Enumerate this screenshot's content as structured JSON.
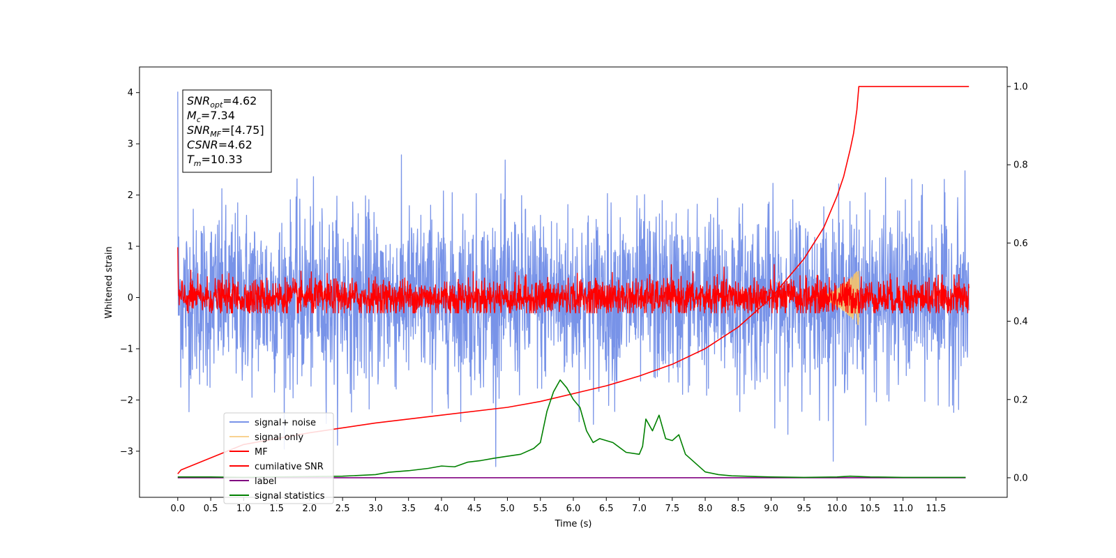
{
  "chart_data": {
    "type": "line",
    "title": "",
    "xlabel": "Time (s)",
    "ylabel": "Whitened strain",
    "xlim": [
      -0.58,
      12.58
    ],
    "ylim": [
      -3.9,
      4.5
    ],
    "y2lim": [
      -0.05,
      1.05
    ],
    "grid": false,
    "legend_position": "lower-left",
    "x_ticks": [
      0.0,
      0.5,
      1.0,
      1.5,
      2.0,
      2.5,
      3.0,
      3.5,
      4.0,
      4.5,
      5.0,
      5.5,
      6.0,
      6.5,
      7.0,
      7.5,
      8.0,
      8.5,
      9.0,
      9.5,
      10.0,
      10.5,
      11.0,
      11.5
    ],
    "x_tick_labels": [
      "0.0",
      "0.5",
      "1.0",
      "1.5",
      "2.0",
      "2.5",
      "3.0",
      "3.5",
      "4.0",
      "4.5",
      "5.0",
      "5.5",
      "6.0",
      "6.5",
      "7.0",
      "7.5",
      "8.0",
      "8.5",
      "9.0",
      "9.5",
      "10.0",
      "10.5",
      "11.0",
      "11.5"
    ],
    "y_ticks": [
      -3,
      -2,
      -1,
      0,
      1,
      2,
      3,
      4
    ],
    "y_tick_labels": [
      "−3",
      "−2",
      "−1",
      "0",
      "1",
      "2",
      "3",
      "4"
    ],
    "y2_ticks": [
      0.0,
      0.2,
      0.4,
      0.6,
      0.8,
      1.0
    ],
    "y2_tick_labels": [
      "0.0",
      "0.2",
      "0.4",
      "0.6",
      "0.8",
      "1.0"
    ],
    "info_box": [
      {
        "symbol": "SNR",
        "subscript": "opt",
        "value": "=4.62"
      },
      {
        "symbol": "M",
        "subscript": "c",
        "value": "=7.34"
      },
      {
        "symbol": "SNR",
        "subscript": "MF",
        "value": "=[4.75]"
      },
      {
        "symbol": "CSNR",
        "subscript": "",
        "value": "=4.62"
      },
      {
        "symbol": "T",
        "subscript": "m",
        "value": "=10.33"
      }
    ],
    "series": [
      {
        "name": "signal+ noise",
        "axis": "left",
        "color": "#7893e8",
        "kind": "noise",
        "x_range": [
          0,
          12
        ],
        "std": 0.85,
        "min": -3.3,
        "max": 4.1
      },
      {
        "name": "signal only",
        "axis": "left",
        "color": "#f5c36b",
        "kind": "chirp",
        "x_range": [
          9.6,
          10.33
        ],
        "amplitude_max": 0.55
      },
      {
        "name": "MF",
        "axis": "left",
        "color": "#ff0000",
        "kind": "noise",
        "x_range": [
          0,
          12
        ],
        "std": 0.18,
        "min": -0.3,
        "max": 1.0
      },
      {
        "name": "cumilative SNR",
        "axis": "right",
        "color": "#ff0000",
        "kind": "curve",
        "x": [
          0.0,
          0.05,
          1.0,
          2.0,
          3.0,
          4.0,
          5.0,
          5.5,
          6.0,
          6.5,
          7.0,
          7.5,
          8.0,
          8.5,
          9.0,
          9.5,
          9.8,
          10.0,
          10.1,
          10.2,
          10.25,
          10.3,
          10.33,
          12.0
        ],
        "y": [
          0.01,
          0.02,
          0.085,
          0.115,
          0.14,
          0.16,
          0.18,
          0.195,
          0.215,
          0.235,
          0.26,
          0.29,
          0.33,
          0.385,
          0.46,
          0.56,
          0.64,
          0.72,
          0.77,
          0.84,
          0.88,
          0.94,
          1.0,
          1.0
        ]
      },
      {
        "name": "label",
        "axis": "right",
        "color": "#800080",
        "kind": "curve",
        "x": [
          0.0,
          11.95
        ],
        "y": [
          0.0,
          0.0
        ]
      },
      {
        "name": "signal statistics",
        "axis": "right",
        "color": "#008000",
        "kind": "curve",
        "x": [
          0.0,
          0.5,
          1.0,
          1.5,
          2.0,
          2.5,
          3.0,
          3.2,
          3.5,
          3.8,
          4.0,
          4.2,
          4.4,
          4.6,
          4.8,
          5.0,
          5.2,
          5.4,
          5.5,
          5.6,
          5.7,
          5.8,
          5.9,
          6.0,
          6.1,
          6.2,
          6.3,
          6.4,
          6.6,
          6.8,
          7.0,
          7.05,
          7.1,
          7.2,
          7.3,
          7.4,
          7.5,
          7.6,
          7.7,
          7.8,
          8.0,
          8.2,
          8.4,
          8.6,
          8.8,
          9.0,
          9.5,
          10.0,
          10.2,
          10.5,
          11.0,
          11.5,
          11.95
        ],
        "y": [
          0.002,
          0.002,
          0.001,
          0.002,
          0.003,
          0.004,
          0.008,
          0.014,
          0.018,
          0.024,
          0.03,
          0.028,
          0.04,
          0.044,
          0.05,
          0.055,
          0.06,
          0.075,
          0.09,
          0.17,
          0.22,
          0.25,
          0.23,
          0.2,
          0.18,
          0.12,
          0.09,
          0.1,
          0.09,
          0.065,
          0.06,
          0.08,
          0.15,
          0.12,
          0.16,
          0.1,
          0.095,
          0.11,
          0.06,
          0.045,
          0.015,
          0.008,
          0.005,
          0.004,
          0.003,
          0.002,
          0.001,
          0.002,
          0.004,
          0.002,
          0.001,
          0.001,
          0.001
        ]
      }
    ]
  }
}
